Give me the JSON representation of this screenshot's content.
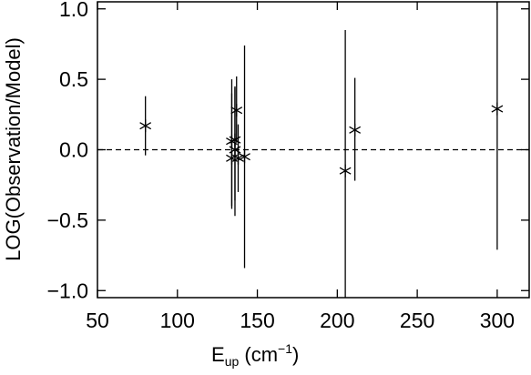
{
  "chart_data": {
    "type": "scatter",
    "title": "",
    "xlabel": {
      "base": "E",
      "sub": "up",
      "unit_open": " (cm",
      "unit_sup": "−1",
      "unit_close": ")"
    },
    "ylabel": "LOG(Observation/Model)",
    "xlim": [
      50,
      320
    ],
    "ylim": [
      -1.05,
      1.05
    ],
    "x_ticks": [
      50,
      100,
      150,
      200,
      250,
      300
    ],
    "x_tick_labels": [
      "50",
      "100",
      "150",
      "200",
      "250",
      "300"
    ],
    "y_ticks": [
      -1.0,
      -0.5,
      0.0,
      0.5,
      1.0
    ],
    "y_tick_labels": [
      "−1.0",
      "−0.5",
      "0.0",
      "0.5",
      "1.0"
    ],
    "reference_line": {
      "y": 0.0,
      "style": "dashed"
    },
    "marker": "asterisk",
    "color": "#000000",
    "grid": false,
    "legend": "none",
    "points": [
      {
        "x": 80,
        "y": 0.17,
        "y_low": -0.04,
        "y_high": 0.38
      },
      {
        "x": 134,
        "y": 0.06,
        "y_low": -0.4,
        "y_high": 0.5
      },
      {
        "x": 134,
        "y": -0.06,
        "y_low": -0.42,
        "y_high": 0.4
      },
      {
        "x": 136,
        "y": 0.0,
        "y_low": -0.47,
        "y_high": 0.44
      },
      {
        "x": 136,
        "y": 0.07,
        "y_low": -0.36,
        "y_high": 0.45
      },
      {
        "x": 137,
        "y": 0.28,
        "y_low": 0.05,
        "y_high": 0.52
      },
      {
        "x": 138,
        "y": -0.06,
        "y_low": -0.3,
        "y_high": 0.18
      },
      {
        "x": 142,
        "y": -0.05,
        "y_low": -0.84,
        "y_high": 0.74
      },
      {
        "x": 205,
        "y": -0.15,
        "y_low": -1.05,
        "y_high": 0.85
      },
      {
        "x": 211,
        "y": 0.14,
        "y_low": -0.22,
        "y_high": 0.51
      },
      {
        "x": 300,
        "y": 0.29,
        "y_low": -0.71,
        "y_high": 1.05
      }
    ]
  }
}
